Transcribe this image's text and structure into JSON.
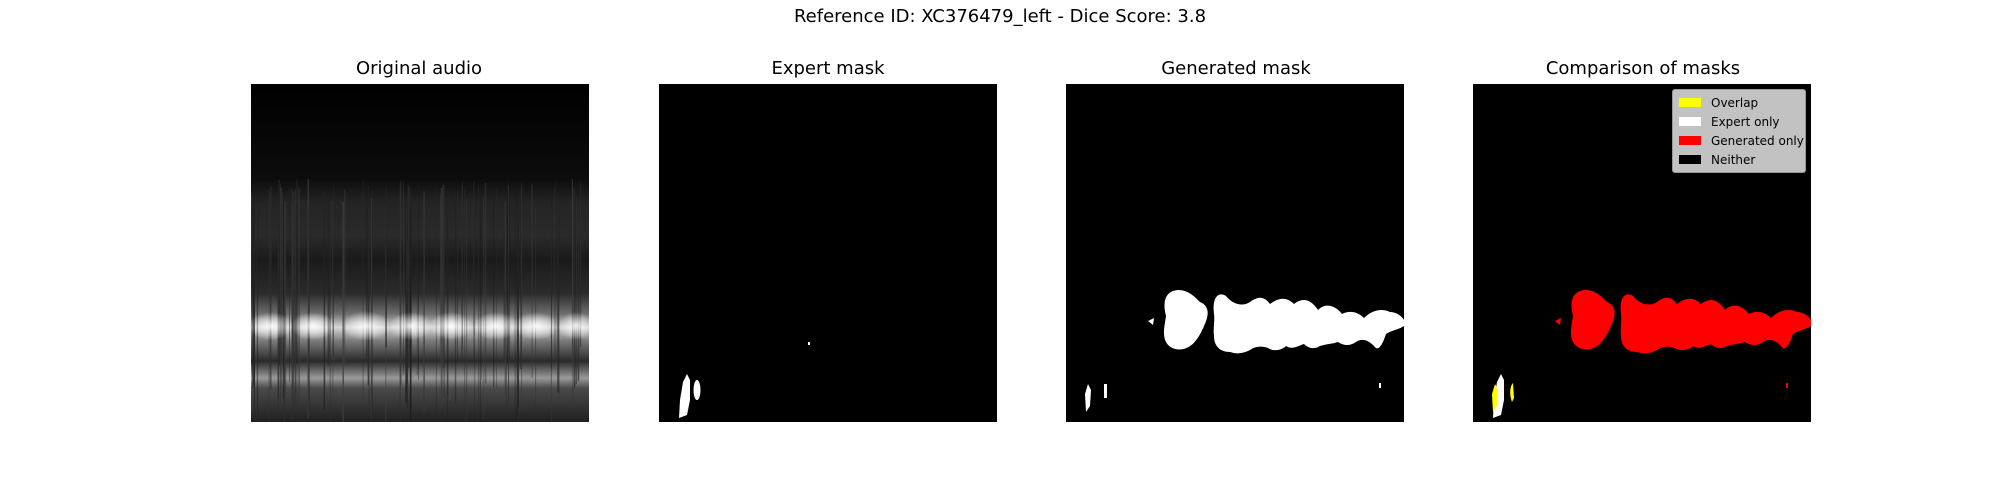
{
  "suptitle": "Reference ID: XC376479_left - Dice Score: 3.8",
  "panels": [
    {
      "title": "Original audio"
    },
    {
      "title": "Expert mask"
    },
    {
      "title": "Generated mask"
    },
    {
      "title": "Comparison of masks"
    }
  ],
  "legend": {
    "items": [
      {
        "label": "Overlap",
        "color": "#ffff00"
      },
      {
        "label": "Expert only",
        "color": "#ffffff"
      },
      {
        "label": "Generated only",
        "color": "#ff0000"
      },
      {
        "label": "Neither",
        "color": "#000000"
      }
    ]
  }
}
